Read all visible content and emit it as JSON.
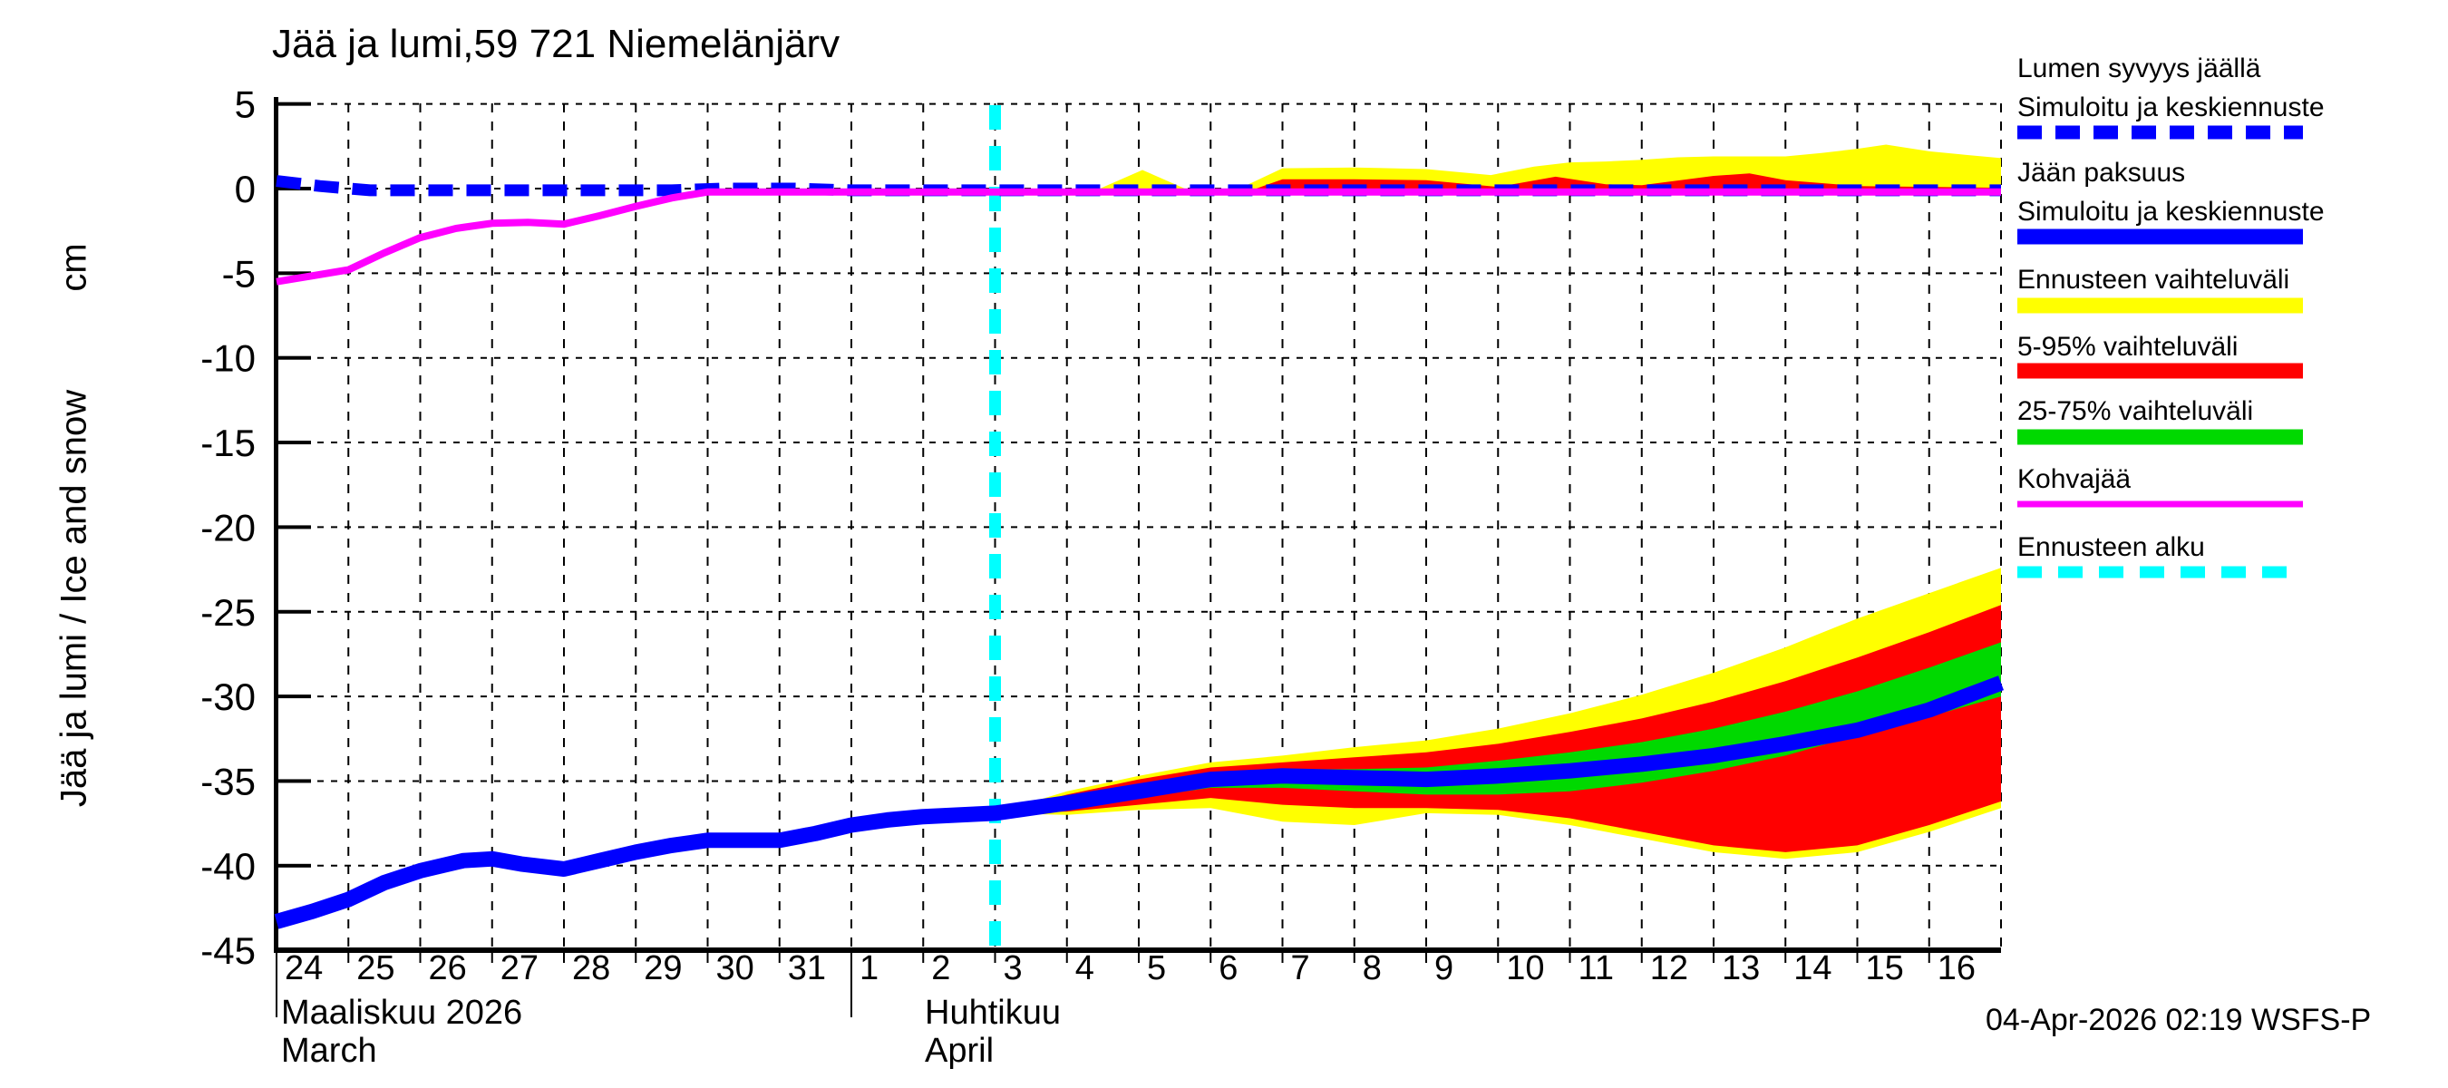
{
  "chart_data": {
    "type": "area",
    "title": "Jää ja lumi,59 721 Niemelänjärv",
    "ylabel": "Jää ja lumi / Ice and snow",
    "y_unit": "cm",
    "ylim": [
      -45,
      5
    ],
    "yticks": [
      5,
      0,
      -5,
      -10,
      -15,
      -20,
      -25,
      -30,
      -35,
      -40,
      -45
    ],
    "grid": true,
    "legend_position": "right",
    "x_total_days": 24,
    "x_day_labels": [
      "24",
      "25",
      "26",
      "27",
      "28",
      "29",
      "30",
      "31",
      "1",
      "2",
      "3",
      "4",
      "5",
      "6",
      "7",
      "8",
      "9",
      "10",
      "11",
      "12",
      "13",
      "14",
      "15",
      "16"
    ],
    "x_months": [
      {
        "fi": "Maaliskuu 2026",
        "en": "March",
        "start_day": 0
      },
      {
        "fi": "Huhtikuu",
        "en": "April",
        "start_day": 8
      }
    ],
    "forecast_start_day": 10,
    "colors": {
      "simulated": "#0000ff",
      "range_minmax": "#ffff00",
      "range_5_95": "#ff0000",
      "range_25_75": "#00d900",
      "kohvajaa": "#ff00ff",
      "forecast_start": "#00ffff",
      "axis": "#000000"
    },
    "series": {
      "ice_thickness_line": [
        [
          0,
          -43.3
        ],
        [
          0.5,
          -42.7
        ],
        [
          1,
          -42
        ],
        [
          1.5,
          -41
        ],
        [
          2,
          -40.3
        ],
        [
          2.6,
          -39.7
        ],
        [
          3,
          -39.6
        ],
        [
          3.4,
          -39.9
        ],
        [
          4,
          -40.2
        ],
        [
          4.5,
          -39.7
        ],
        [
          5,
          -39.2
        ],
        [
          5.5,
          -38.8
        ],
        [
          6,
          -38.5
        ],
        [
          7,
          -38.5
        ],
        [
          7.5,
          -38.1
        ],
        [
          8,
          -37.6
        ],
        [
          8.5,
          -37.3
        ],
        [
          9,
          -37.1
        ],
        [
          10,
          -36.9
        ],
        [
          11,
          -36.3
        ],
        [
          12,
          -35.6
        ],
        [
          13,
          -34.9
        ],
        [
          14,
          -34.7
        ],
        [
          15,
          -34.8
        ],
        [
          16,
          -34.9
        ],
        [
          17,
          -34.7
        ],
        [
          18,
          -34.4
        ],
        [
          19,
          -34
        ],
        [
          20,
          -33.5
        ],
        [
          21,
          -32.8
        ],
        [
          22,
          -32
        ],
        [
          23,
          -30.8
        ],
        [
          24,
          -29.2
        ]
      ],
      "snow_depth_line": [
        [
          0,
          0.45
        ],
        [
          0.6,
          0.15
        ],
        [
          1.3,
          -0.1
        ],
        [
          5.5,
          -0.1
        ],
        [
          6.2,
          0
        ],
        [
          7.2,
          0
        ],
        [
          8,
          -0.1
        ],
        [
          24,
          -0.1
        ]
      ],
      "kohvajaa_line": [
        [
          0,
          -5.5
        ],
        [
          0.5,
          -5.15
        ],
        [
          1,
          -4.8
        ],
        [
          1.5,
          -3.8
        ],
        [
          2,
          -2.9
        ],
        [
          2.5,
          -2.35
        ],
        [
          3,
          -2.05
        ],
        [
          3.5,
          -2
        ],
        [
          4,
          -2.1
        ],
        [
          4.5,
          -1.6
        ],
        [
          5,
          -1.05
        ],
        [
          5.5,
          -0.55
        ],
        [
          6,
          -0.2
        ],
        [
          24,
          -0.2
        ]
      ],
      "ice_band_minmax": {
        "days": [
          10,
          11,
          12,
          13,
          14,
          15,
          16,
          17,
          18,
          19,
          20,
          21,
          22,
          23,
          24
        ],
        "top": [
          -36.9,
          -35.6,
          -34.7,
          -33.9,
          -33.5,
          -33.0,
          -32.6,
          -31.9,
          -31.0,
          -29.9,
          -28.6,
          -27.1,
          -25.4,
          -23.9,
          -22.4
        ],
        "bottom": [
          -36.9,
          -37.0,
          -36.7,
          -36.6,
          -37.4,
          -37.6,
          -36.9,
          -37.0,
          -37.6,
          -38.4,
          -39.2,
          -39.6,
          -39.2,
          -38.0,
          -36.6
        ]
      },
      "ice_band_5_95": {
        "days": [
          10,
          11,
          12,
          13,
          14,
          15,
          16,
          17,
          18,
          19,
          20,
          21,
          22,
          23,
          24
        ],
        "top": [
          -36.9,
          -35.8,
          -34.9,
          -34.2,
          -33.9,
          -33.6,
          -33.3,
          -32.8,
          -32.1,
          -31.3,
          -30.3,
          -29.1,
          -27.7,
          -26.2,
          -24.6
        ],
        "bottom": [
          -36.9,
          -36.8,
          -36.4,
          -36.0,
          -36.4,
          -36.6,
          -36.6,
          -36.7,
          -37.2,
          -38.0,
          -38.8,
          -39.2,
          -38.8,
          -37.6,
          -36.2
        ]
      },
      "ice_band_25_75": {
        "days": [
          10,
          11,
          12,
          13,
          14,
          15,
          16,
          17,
          18,
          19,
          20,
          21,
          22,
          23,
          24
        ],
        "top": [
          -36.9,
          -36.0,
          -35.2,
          -34.5,
          -34.3,
          -34.3,
          -34.2,
          -33.8,
          -33.3,
          -32.7,
          -31.9,
          -30.9,
          -29.7,
          -28.3,
          -26.8
        ],
        "bottom": [
          -36.9,
          -36.6,
          -36.0,
          -35.4,
          -35.4,
          -35.6,
          -35.8,
          -35.8,
          -35.6,
          -35.1,
          -34.4,
          -33.5,
          -32.3,
          -31.2,
          -30.0
        ]
      },
      "snow_band_minmax_1": [
        [
          11.35,
          -0.2
        ],
        [
          12.05,
          1.1
        ],
        [
          12.75,
          -0.2
        ]
      ],
      "snow_band_minmax_2": [
        [
          13.3,
          -0.2
        ],
        [
          14,
          1.2
        ],
        [
          15,
          1.25
        ],
        [
          16,
          1.15
        ],
        [
          16.9,
          0.8
        ],
        [
          17.5,
          1.3
        ],
        [
          18,
          1.55
        ],
        [
          18.5,
          1.6
        ],
        [
          19,
          1.7
        ],
        [
          19.5,
          1.85
        ],
        [
          20,
          1.9
        ],
        [
          21,
          1.9
        ],
        [
          21.5,
          2.1
        ],
        [
          22,
          2.35
        ],
        [
          22.4,
          2.6
        ],
        [
          23,
          2.2
        ],
        [
          23.5,
          2
        ],
        [
          24,
          1.8
        ]
      ],
      "snow_band_5_95": [
        [
          13.5,
          -0.2
        ],
        [
          14,
          0.55
        ],
        [
          15,
          0.55
        ],
        [
          16,
          0.5
        ],
        [
          17,
          0.1
        ],
        [
          17.8,
          0.7
        ],
        [
          18.5,
          0.25
        ],
        [
          19,
          0.2
        ],
        [
          20,
          0.75
        ],
        [
          20.5,
          0.9
        ],
        [
          21,
          0.5
        ],
        [
          22,
          0.15
        ],
        [
          23,
          0.1
        ],
        [
          24,
          0.05
        ]
      ]
    }
  },
  "legend": {
    "items": [
      {
        "label_lines": [
          "Lumen syvyys jäällä",
          "Simuloitu ja keskiennuste"
        ],
        "swatch": "dashed-line",
        "color": "#0000ff"
      },
      {
        "label_lines": [
          "Jään paksuus",
          "Simuloitu ja keskiennuste"
        ],
        "swatch": "bar",
        "color": "#0000ff"
      },
      {
        "label_lines": [
          "Ennusteen vaihteluväli"
        ],
        "swatch": "bar",
        "color": "#ffff00"
      },
      {
        "label_lines": [
          "5-95% vaihteluväli"
        ],
        "swatch": "bar",
        "color": "#ff0000"
      },
      {
        "label_lines": [
          "25-75% vaihteluväli"
        ],
        "swatch": "bar",
        "color": "#00d900"
      },
      {
        "label_lines": [
          "Kohvajää"
        ],
        "swatch": "line",
        "color": "#ff00ff"
      },
      {
        "label_lines": [
          "Ennusteen alku"
        ],
        "swatch": "dashed-line-thin",
        "color": "#00ffff"
      }
    ]
  },
  "footer": {
    "timestamp": "04-Apr-2026 02:19 WSFS-P"
  }
}
